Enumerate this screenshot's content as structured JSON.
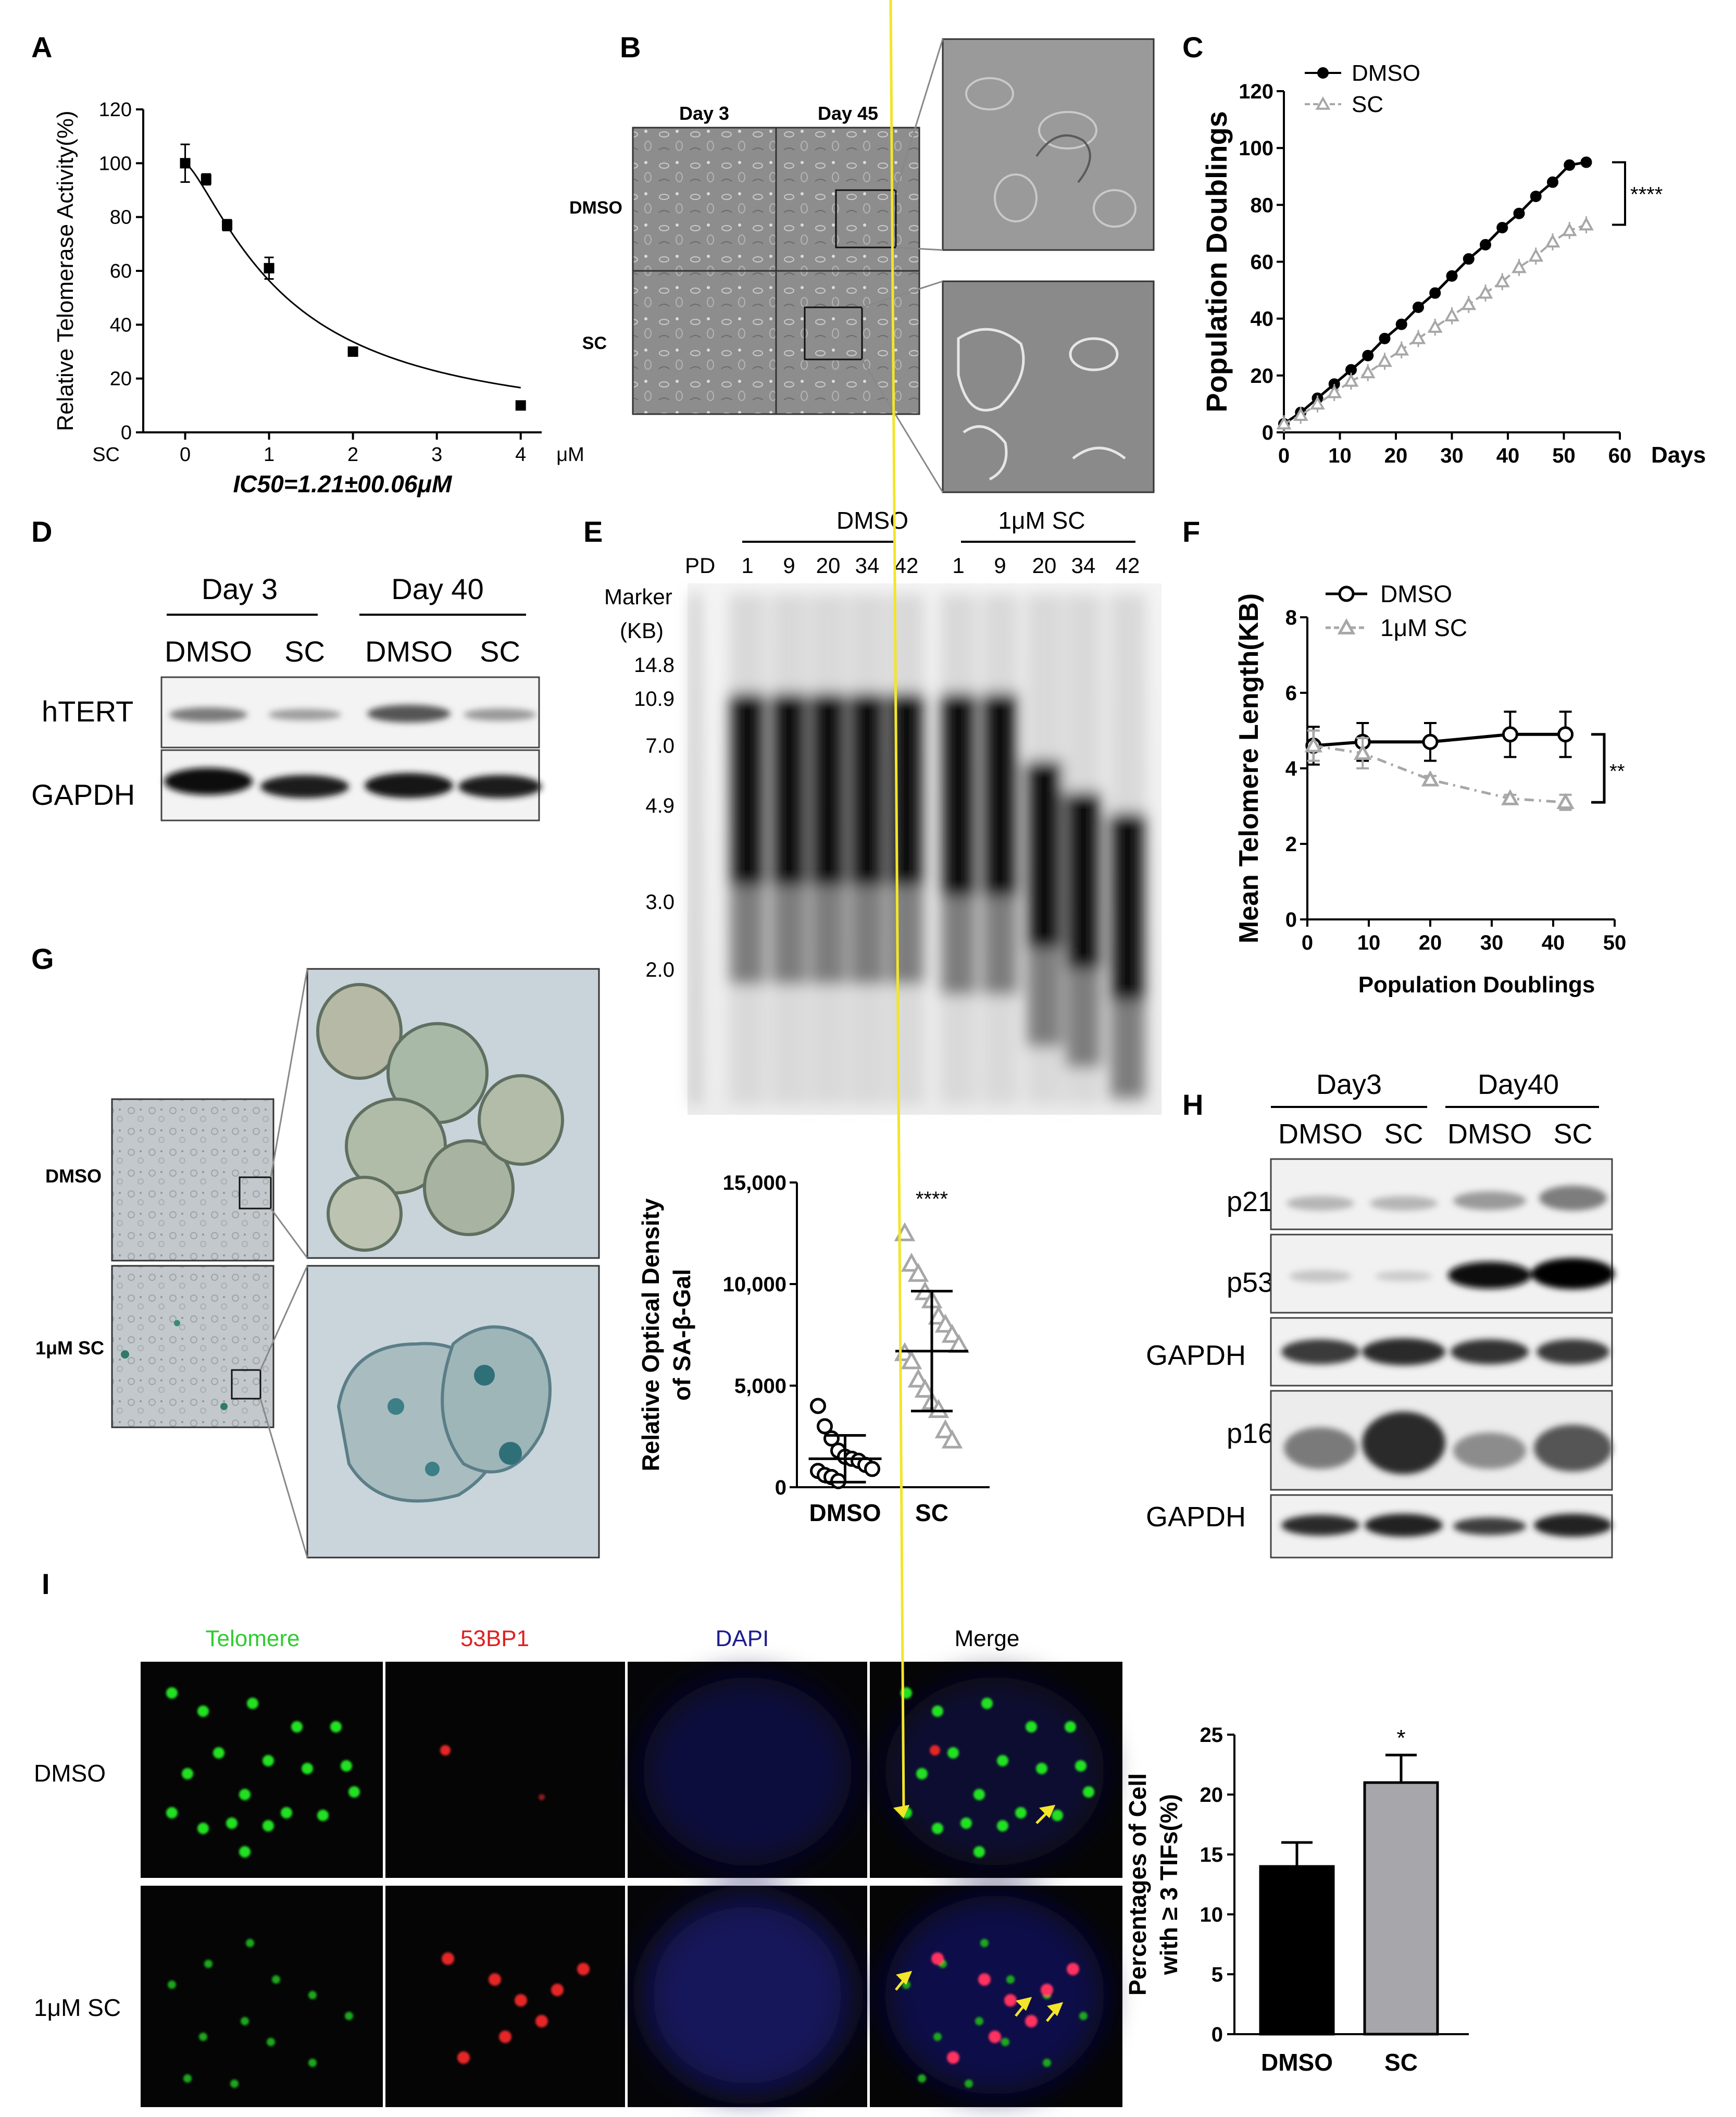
{
  "panel_labels": [
    "A",
    "B",
    "C",
    "D",
    "E",
    "F",
    "G",
    "H",
    "I"
  ],
  "colors": {
    "black": "#000000",
    "gray": "#a7a7a7",
    "bar_black": "#000000",
    "bar_gray": "#a6a6ab",
    "arrow": "#f2e52a",
    "telomere_label": "#2fcc2f",
    "bp_label": "#e02020",
    "dapi_label": "#1c1c8c"
  },
  "chart_data": [
    {
      "id": "A",
      "type": "line",
      "ylabel": "Relative Telomerase Activity(%)",
      "unit_label": "μM",
      "zero_label": "SC",
      "annotation": "IC50=1.21±00.06μM",
      "xlim": [
        0,
        4
      ],
      "ylim": [
        0,
        120
      ],
      "xticks": [
        "0",
        "1",
        "2",
        "3",
        "4"
      ],
      "yticks": [
        "0",
        "20",
        "40",
        "60",
        "80",
        "100",
        "120"
      ],
      "series": [
        {
          "x": [
            0,
            0.25,
            0.5,
            1,
            2,
            4
          ],
          "y": [
            100,
            94,
            77,
            61,
            30,
            10
          ],
          "err": [
            7,
            2,
            2,
            4,
            1,
            1
          ]
        }
      ]
    },
    {
      "id": "C",
      "type": "line",
      "ylabel": "Population Doublings",
      "xlabel_unit": "Days",
      "xlim": [
        0,
        60
      ],
      "ylim": [
        0,
        120
      ],
      "xticks": [
        "0",
        "10",
        "20",
        "30",
        "40",
        "50",
        "60"
      ],
      "yticks": [
        "0",
        "20",
        "40",
        "60",
        "80",
        "100",
        "120"
      ],
      "significance": "****",
      "series": [
        {
          "name": "DMSO",
          "x": [
            0,
            3,
            6,
            9,
            12,
            15,
            18,
            21,
            24,
            27,
            30,
            33,
            36,
            39,
            42,
            45,
            48,
            51,
            54
          ],
          "y": [
            3,
            7,
            12,
            17,
            22,
            27,
            33,
            38,
            44,
            49,
            55,
            61,
            66,
            72,
            77,
            83,
            88,
            94,
            95
          ]
        },
        {
          "name": "SC",
          "x": [
            0,
            3,
            6,
            9,
            12,
            15,
            18,
            21,
            24,
            27,
            30,
            33,
            36,
            39,
            42,
            45,
            48,
            51,
            54
          ],
          "y": [
            3,
            6,
            10,
            14,
            18,
            21,
            25,
            29,
            33,
            37,
            41,
            45,
            49,
            53,
            58,
            62,
            67,
            71,
            73
          ]
        }
      ]
    },
    {
      "id": "F",
      "type": "line",
      "ylabel": "Mean Telomere Length(KB)",
      "xlabel": "Population Doublings",
      "xlim": [
        0,
        50
      ],
      "ylim": [
        0,
        8
      ],
      "xticks": [
        "0",
        "10",
        "20",
        "30",
        "40",
        "50"
      ],
      "yticks": [
        "0",
        "2",
        "4",
        "6",
        "8"
      ],
      "significance": "**",
      "series": [
        {
          "name": "DMSO",
          "x": [
            1,
            9,
            20,
            33,
            42
          ],
          "y": [
            4.6,
            4.7,
            4.7,
            4.9,
            4.9
          ],
          "err": [
            0.5,
            0.5,
            0.5,
            0.6,
            0.6
          ]
        },
        {
          "name": "1μM SC",
          "x": [
            1,
            9,
            20,
            33,
            42
          ],
          "y": [
            4.6,
            4.4,
            3.7,
            3.2,
            3.1
          ],
          "err": [
            0.4,
            0.4,
            0.1,
            0.1,
            0.2
          ]
        }
      ]
    },
    {
      "id": "G",
      "type": "scatter",
      "ylabel": "Relative Optical Density of SA-β-Gal",
      "ylim": [
        0,
        15000
      ],
      "yticks": [
        "0",
        "5,000",
        "10,000",
        "15,000"
      ],
      "categories": [
        "DMSO",
        "SC"
      ],
      "significance": "****",
      "series": [
        {
          "name": "DMSO",
          "mean": 1400,
          "sd": 1150,
          "values": [
            4000,
            3000,
            2400,
            1800,
            1500,
            1400,
            1300,
            1100,
            900,
            800,
            600,
            500,
            300
          ]
        },
        {
          "name": "SC",
          "mean": 6700,
          "sd": 2950,
          "values": [
            12500,
            11000,
            10500,
            9600,
            9200,
            8400,
            8000,
            7500,
            7000,
            6600,
            6200,
            5300,
            4800,
            4200,
            3800,
            2800,
            2300
          ]
        }
      ]
    },
    {
      "id": "I",
      "type": "bar",
      "ylabel": "Percentages of Cell with ≥ 3 TIFs(%)",
      "ylim": [
        0,
        25
      ],
      "yticks": [
        "0",
        "5",
        "10",
        "15",
        "20",
        "25"
      ],
      "categories": [
        "DMSO",
        "SC"
      ],
      "significance": "*",
      "values": [
        14,
        21
      ],
      "errors": [
        2,
        2.3
      ]
    }
  ],
  "panel_B": {
    "col_labels": [
      "Day 3",
      "Day 45"
    ],
    "row_labels": [
      "DMSO",
      "SC"
    ]
  },
  "panel_D": {
    "group_labels": [
      "Day 3",
      "Day 40"
    ],
    "lane_labels": [
      "DMSO",
      "SC",
      "DMSO",
      "SC"
    ],
    "row_labels": [
      "hTERT",
      "GAPDH"
    ]
  },
  "panel_E": {
    "group_labels": [
      "DMSO",
      "1μM SC"
    ],
    "pd_label": "PD",
    "lane_labels": [
      "1",
      "9",
      "20",
      "34",
      "42",
      "1",
      "9",
      "20",
      "34",
      "42"
    ],
    "marker_title": "Marker",
    "marker_unit": "(KB)",
    "marker_sizes": [
      "14.8",
      "10.9",
      "7.0",
      "4.9",
      "3.0",
      "2.0"
    ]
  },
  "panel_Gimg": {
    "row_labels": [
      "DMSO",
      "1μM SC"
    ]
  },
  "panel_H": {
    "group_labels": [
      "Day3",
      "Day40"
    ],
    "lane_labels": [
      "DMSO",
      "SC",
      "DMSO",
      "SC"
    ],
    "row_labels": [
      "p21",
      "p53",
      "GAPDH",
      "p16",
      "GAPDH"
    ]
  },
  "panel_Iimg": {
    "col_labels": [
      "Telomere",
      "53BP1",
      "DAPI",
      "Merge"
    ],
    "row_labels": [
      "DMSO",
      "1μM SC"
    ]
  }
}
